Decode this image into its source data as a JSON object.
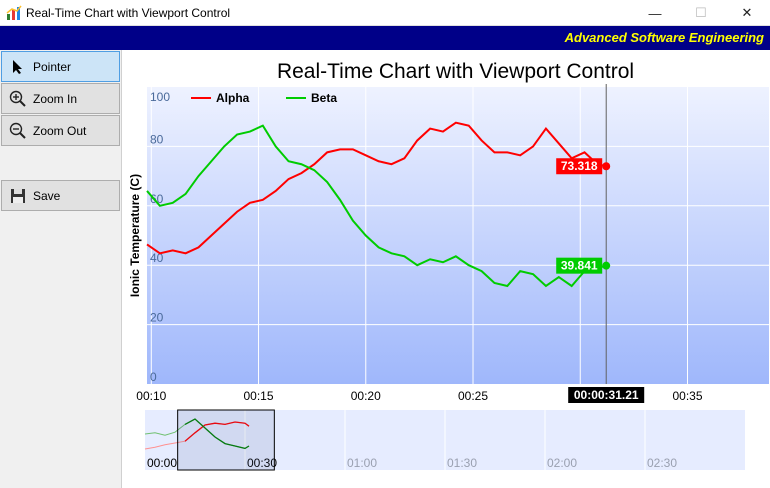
{
  "window": {
    "title": "Real-Time Chart with Viewport Control",
    "controls": {
      "minimize": "—",
      "maximize": "☐",
      "close": "✕"
    }
  },
  "brand": "Advanced Software Engineering",
  "sidebar": {
    "buttons": [
      {
        "label": "Pointer",
        "icon": "pointer-icon",
        "active": true
      },
      {
        "label": "Zoom In",
        "icon": "zoom-in-icon",
        "active": false
      },
      {
        "label": "Zoom Out",
        "icon": "zoom-out-icon",
        "active": false
      },
      {
        "label": "Save",
        "icon": "save-icon",
        "active": false
      }
    ]
  },
  "chart_data": [
    {
      "type": "line",
      "title": "Real-Time Chart with Viewport Control",
      "xlabel": "",
      "ylabel": "Ionic Temperature (C)",
      "ylim": [
        0,
        100
      ],
      "y_ticks": [
        "0",
        "20",
        "40",
        "60",
        "80",
        "100"
      ],
      "x_tick_labels": [
        "00:10",
        "00:15",
        "00:20",
        "00:25",
        "00:35"
      ],
      "x_range_seconds": [
        9.8,
        38.8
      ],
      "grid": true,
      "legend_placement": "top-left",
      "cursor": {
        "label": "00:00:31.21",
        "x_seconds": 31.21
      },
      "series": [
        {
          "name": "Alpha",
          "color": "#ff0000",
          "end_label": "73.318",
          "x": [
            9.8,
            10.4,
            11.0,
            11.6,
            12.2,
            12.8,
            13.4,
            14.0,
            14.6,
            15.2,
            15.8,
            16.4,
            17.0,
            17.6,
            18.2,
            18.8,
            19.4,
            20.0,
            20.6,
            21.2,
            21.8,
            22.4,
            23.0,
            23.6,
            24.2,
            24.8,
            25.4,
            26.0,
            26.6,
            27.2,
            27.8,
            28.4,
            29.0,
            29.6,
            30.2,
            30.8,
            31.21
          ],
          "values": [
            47,
            44,
            45,
            44,
            46,
            50,
            54,
            58,
            61,
            62,
            65,
            69,
            71,
            74,
            78,
            79,
            79,
            77,
            75,
            74,
            76,
            82,
            86,
            85,
            88,
            87,
            82,
            78,
            78,
            77,
            80,
            86,
            81,
            76,
            78,
            74,
            73.318
          ]
        },
        {
          "name": "Beta",
          "color": "#00cc00",
          "end_label": "39.841",
          "x": [
            9.8,
            10.4,
            11.0,
            11.6,
            12.2,
            12.8,
            13.4,
            14.0,
            14.6,
            15.2,
            15.8,
            16.4,
            17.0,
            17.6,
            18.2,
            18.8,
            19.4,
            20.0,
            20.6,
            21.2,
            21.8,
            22.4,
            23.0,
            23.6,
            24.2,
            24.8,
            25.4,
            26.0,
            26.6,
            27.2,
            27.8,
            28.4,
            29.0,
            29.6,
            30.2,
            30.8,
            31.21
          ],
          "values": [
            65,
            60,
            61,
            64,
            70,
            75,
            80,
            84,
            85,
            87,
            80,
            75,
            74,
            72,
            68,
            62,
            55,
            50,
            46,
            44,
            43,
            40,
            42,
            41,
            43,
            40,
            38,
            34,
            33,
            38,
            37,
            33,
            36,
            33,
            38,
            39,
            39.841
          ]
        }
      ]
    },
    {
      "type": "line",
      "title": "",
      "x_tick_labels": [
        "00:00",
        "00:30",
        "01:00",
        "01:30",
        "02:00",
        "02:30"
      ],
      "x_range_seconds": [
        0,
        180
      ],
      "viewport_seconds": [
        9.8,
        38.8
      ],
      "ylim": [
        0,
        100
      ],
      "series": [
        {
          "name": "Alpha",
          "color": "#ff9090",
          "dark_color": "#ff0000",
          "x": [
            0,
            3,
            6,
            9,
            12,
            15,
            18,
            21,
            24,
            27,
            30,
            31.2
          ],
          "values": [
            35,
            38,
            42,
            45,
            48,
            62,
            75,
            78,
            76,
            80,
            78,
            73
          ]
        },
        {
          "name": "Beta",
          "color": "#70c070",
          "dark_color": "#008000",
          "x": [
            0,
            3,
            6,
            9,
            12,
            15,
            18,
            21,
            24,
            27,
            30,
            31.2
          ],
          "values": [
            60,
            62,
            58,
            63,
            76,
            85,
            70,
            55,
            44,
            40,
            36,
            40
          ]
        }
      ]
    }
  ]
}
